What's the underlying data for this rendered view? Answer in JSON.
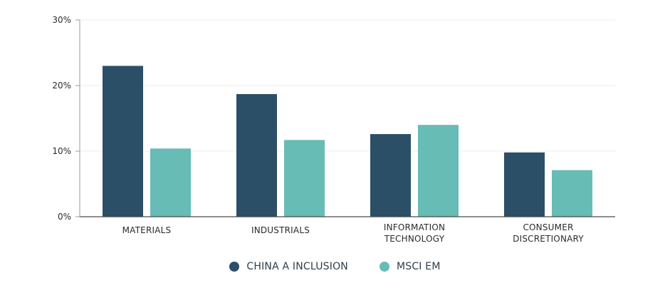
{
  "chart_data": {
    "type": "bar",
    "categories": [
      "MATERIALS",
      "INDUSTRIALS",
      "INFORMATION TECHNOLOGY",
      "CONSUMER DISCRETIONARY"
    ],
    "category_lines": [
      [
        "MATERIALS"
      ],
      [
        "INDUSTRIALS"
      ],
      [
        "INFORMATION",
        "TECHNOLOGY"
      ],
      [
        "CONSUMER",
        "DISCRETIONARY"
      ]
    ],
    "series": [
      {
        "name": "CHINA A INCLUSION",
        "color": "#2b4f67",
        "values": [
          23.0,
          18.7,
          12.6,
          9.8
        ]
      },
      {
        "name": "MSCI EM",
        "color": "#67bcb6",
        "values": [
          10.4,
          11.7,
          14.0,
          7.1
        ]
      }
    ],
    "yticks": [
      0,
      10,
      20,
      30
    ],
    "ytick_labels": [
      "0%",
      "10%",
      "20%",
      "30%"
    ],
    "ylim": [
      0,
      30
    ],
    "grid": true,
    "legend_position": "bottom-center"
  }
}
